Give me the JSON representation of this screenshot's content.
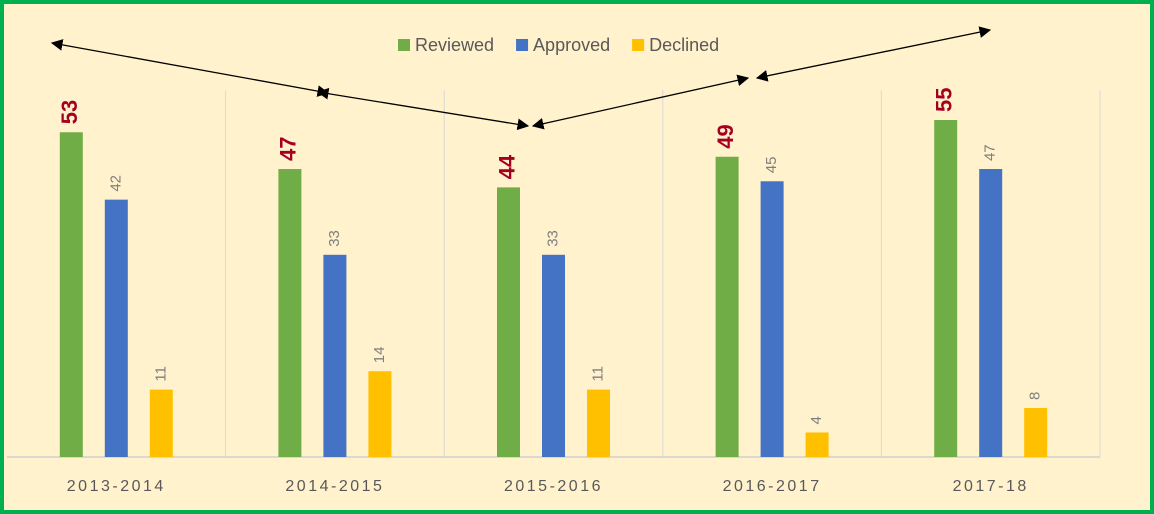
{
  "chart_data": {
    "type": "bar",
    "categories": [
      "2013-2014",
      "2014-2015",
      "2015-2016",
      "2016-2017",
      "2017-18"
    ],
    "series": [
      {
        "name": "Reviewed",
        "color": "#70ad47",
        "label_color": "#a50021",
        "values": [
          53,
          47,
          44,
          49,
          55
        ]
      },
      {
        "name": "Approved",
        "color": "#4472c4",
        "label_color": "#7f7f7f",
        "values": [
          42,
          33,
          33,
          45,
          47
        ]
      },
      {
        "name": "Declined",
        "color": "#ffc000",
        "label_color": "#7f7f7f",
        "values": [
          11,
          14,
          11,
          4,
          8
        ]
      }
    ],
    "legend": "top",
    "grid": true
  }
}
